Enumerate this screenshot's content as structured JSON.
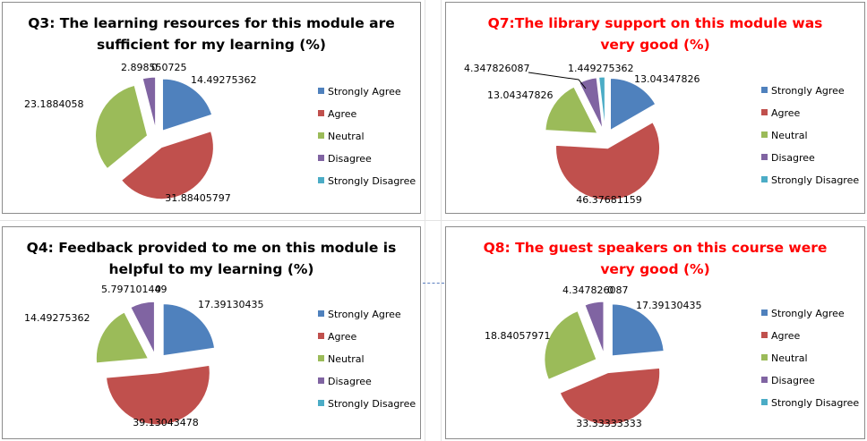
{
  "legend_labels": [
    "Strongly Agree",
    "Agree",
    "Neutral",
    "Disagree",
    "Strongly Disagree"
  ],
  "colors": {
    "series": [
      "#4f81bd",
      "#c0504d",
      "#9bbb59",
      "#8064a2",
      "#4bacc6"
    ],
    "title_black": "#000000",
    "title_red": "#ff0000"
  },
  "chart_data": [
    {
      "type": "pie",
      "title": "Q3: The learning resources for this module are\nsufficient for my learning (%)",
      "title_color": "#000000",
      "categories": [
        "Strongly Agree",
        "Agree",
        "Neutral",
        "Disagree",
        "Strongly Disagree"
      ],
      "values": [
        14.49275362,
        31.88405797,
        23.1884058,
        2.898550725,
        0
      ],
      "data_labels": [
        "14.49275362",
        "31.88405797",
        "23.1884058",
        "2.898550725",
        "0"
      ],
      "legend_position": "right",
      "exploded": true
    },
    {
      "type": "pie",
      "title": "Q7:The library support on this module was\nvery good (%)",
      "title_color": "#ff0000",
      "categories": [
        "Strongly Agree",
        "Agree",
        "Neutral",
        "Disagree",
        "Strongly Disagree"
      ],
      "values": [
        13.04347826,
        46.37681159,
        13.04347826,
        4.347826087,
        1.449275362
      ],
      "data_labels": [
        "13.04347826",
        "46.37681159",
        "13.04347826",
        "4.347826087",
        "1.449275362"
      ],
      "legend_position": "right",
      "exploded": true
    },
    {
      "type": "pie",
      "title": "Q4: Feedback provided to me on this module is\nhelpful to my learning (%)",
      "title_color": "#000000",
      "categories": [
        "Strongly Agree",
        "Agree",
        "Neutral",
        "Disagree",
        "Strongly Disagree"
      ],
      "values": [
        17.39130435,
        39.13043478,
        14.49275362,
        5.797101449,
        0
      ],
      "data_labels": [
        "17.39130435",
        "39.13043478",
        "14.49275362",
        "5.797101449",
        "0"
      ],
      "legend_position": "right",
      "exploded": true
    },
    {
      "type": "pie",
      "title": "Q8: The guest speakers on this course were\nvery good (%)",
      "title_color": "#ff0000",
      "categories": [
        "Strongly Agree",
        "Agree",
        "Neutral",
        "Disagree",
        "Strongly Disagree"
      ],
      "values": [
        17.39130435,
        33.33333333,
        18.84057971,
        4.347826087,
        0
      ],
      "data_labels": [
        "17.39130435",
        "33.33333333",
        "18.84057971",
        "4.347826087",
        "0"
      ],
      "legend_position": "right",
      "exploded": true
    }
  ]
}
